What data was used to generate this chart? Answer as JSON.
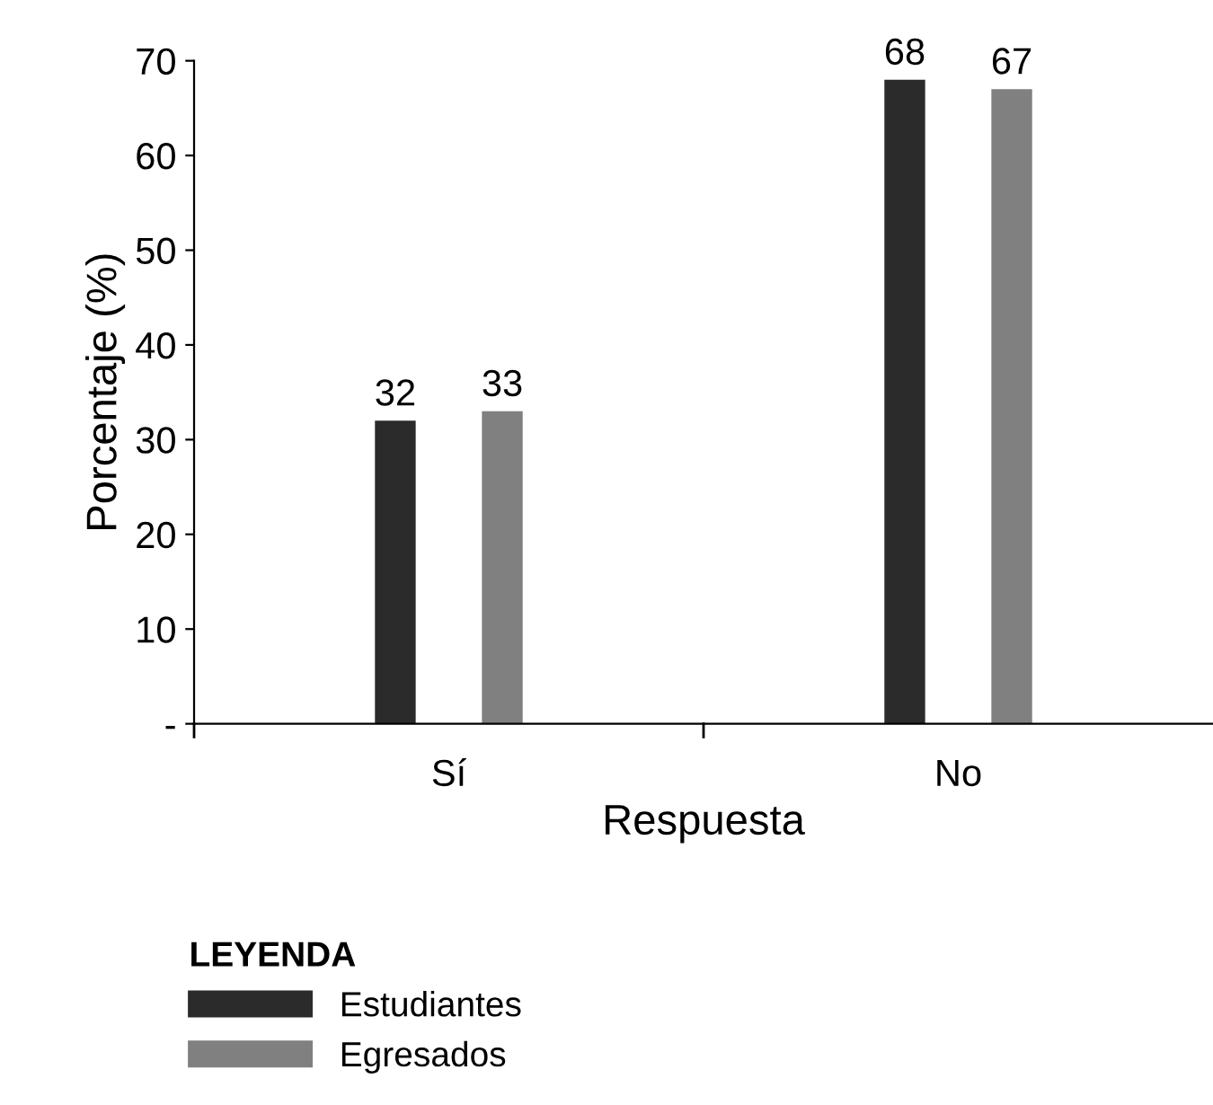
{
  "chart_data": {
    "type": "bar",
    "xlabel": "Respuesta",
    "ylabel": "Porcentaje (%)",
    "legend_title": "LEYENDA",
    "categories": [
      "Sí",
      "No"
    ],
    "series": [
      {
        "name": "Estudiantes",
        "color": "#2b2b2b",
        "values": [
          32,
          68
        ]
      },
      {
        "name": "Egresados",
        "color": "#808080",
        "values": [
          33,
          67
        ]
      }
    ],
    "ylim": [
      0,
      70
    ],
    "yticks": [
      {
        "value": 0,
        "label": "-"
      },
      10,
      20,
      30,
      40,
      50,
      60,
      70
    ],
    "data_labels": true,
    "grid": false,
    "legend": "bottom left"
  }
}
